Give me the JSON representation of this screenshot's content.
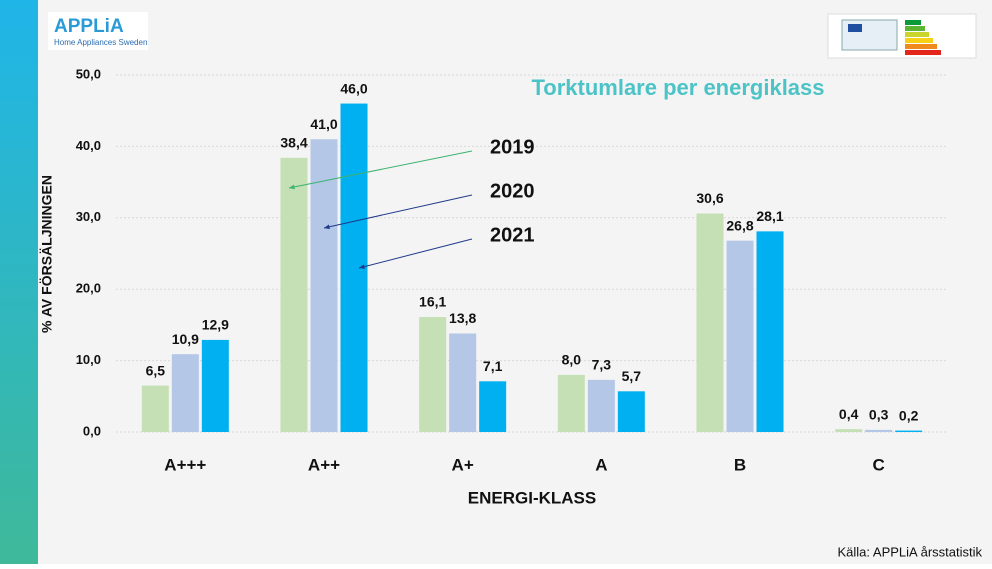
{
  "brand": {
    "name": "APPLiA",
    "tagline": "Home Appliances Sweden"
  },
  "source": "Källa: APPLiA årsstatistik",
  "chart_data": {
    "type": "bar",
    "title": "Torktumlare per energiklass",
    "x_label": "ENERGI-KLASS",
    "y_label": "% AV FÖRSÄLJNINGEN",
    "categories": [
      "A+++",
      "A++",
      "A+",
      "A",
      "B",
      "C"
    ],
    "series": [
      {
        "name": "2019",
        "color": "#c5e0b4",
        "values": [
          6.5,
          38.4,
          16.1,
          8.0,
          30.6,
          0.4
        ],
        "value_labels": [
          "6,5",
          "38,4",
          "16,1",
          "8,0",
          "30,6",
          "0,4"
        ]
      },
      {
        "name": "2020",
        "color": "#b4c7e7",
        "values": [
          10.9,
          41.0,
          13.8,
          7.3,
          26.8,
          0.3
        ],
        "value_labels": [
          "10,9",
          "41,0",
          "13,8",
          "7,3",
          "26,8",
          "0,3"
        ]
      },
      {
        "name": "2021",
        "color": "#00b0f0",
        "values": [
          12.9,
          46.0,
          7.1,
          5.7,
          28.1,
          0.2
        ],
        "value_labels": [
          "12,9",
          "46,0",
          "7,1",
          "5,7",
          "28,1",
          "0,2"
        ]
      }
    ],
    "ylim": [
      0,
      50
    ],
    "yticks": [
      {
        "value": 0,
        "label": "0,0"
      },
      {
        "value": 10,
        "label": "10,0"
      },
      {
        "value": 20,
        "label": "20,0"
      },
      {
        "value": 30,
        "label": "30,0"
      },
      {
        "value": 40,
        "label": "40,0"
      },
      {
        "value": 50,
        "label": "50,0"
      }
    ],
    "grid": true
  }
}
